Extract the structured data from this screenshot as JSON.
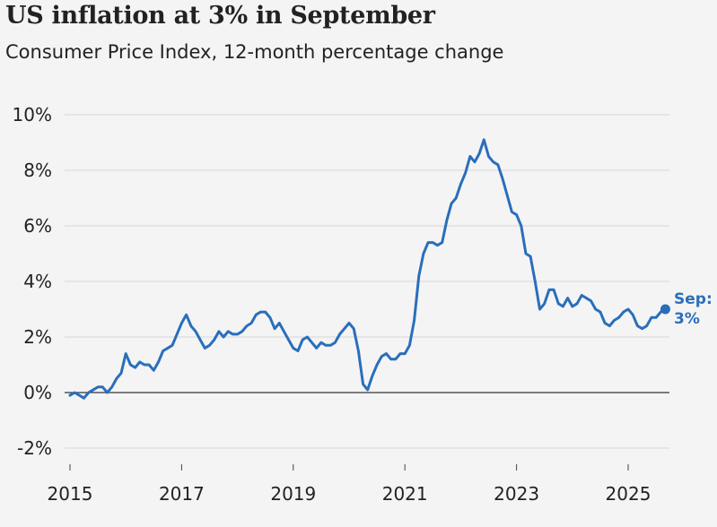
{
  "chart_data": {
    "type": "line",
    "title": "US inflation at 3% in September",
    "subtitle": "Consumer Price Index, 12-month percentage change",
    "xlabel": "",
    "ylabel": "",
    "ylim": [
      -2,
      10
    ],
    "y_ticks": [
      {
        "value": 10,
        "label": "10%"
      },
      {
        "value": 8,
        "label": "8%"
      },
      {
        "value": 6,
        "label": "6%"
      },
      {
        "value": 4,
        "label": "4%"
      },
      {
        "value": 2,
        "label": "2%"
      },
      {
        "value": 0,
        "label": "0%"
      },
      {
        "value": -2,
        "label": "-2%"
      }
    ],
    "x_ticks": [
      {
        "value": 2015,
        "label": "2015"
      },
      {
        "value": 2017,
        "label": "2017"
      },
      {
        "value": 2019,
        "label": "2019"
      },
      {
        "value": 2021,
        "label": "2021"
      },
      {
        "value": 2023,
        "label": "2023"
      },
      {
        "value": 2025,
        "label": "2025"
      }
    ],
    "grid": true,
    "line_color": "#2a6ebb",
    "series": [
      {
        "name": "CPI 12-month % change",
        "start": "2015-01",
        "frequency": "monthly",
        "values": [
          -0.1,
          0.0,
          -0.1,
          -0.2,
          0.0,
          0.1,
          0.2,
          0.2,
          0.0,
          0.2,
          0.5,
          0.7,
          1.4,
          1.0,
          0.9,
          1.1,
          1.0,
          1.0,
          0.8,
          1.1,
          1.5,
          1.6,
          1.7,
          2.1,
          2.5,
          2.8,
          2.4,
          2.2,
          1.9,
          1.6,
          1.7,
          1.9,
          2.2,
          2.0,
          2.2,
          2.1,
          2.1,
          2.2,
          2.4,
          2.5,
          2.8,
          2.9,
          2.9,
          2.7,
          2.3,
          2.5,
          2.2,
          1.9,
          1.6,
          1.5,
          1.9,
          2.0,
          1.8,
          1.6,
          1.8,
          1.7,
          1.7,
          1.8,
          2.1,
          2.3,
          2.5,
          2.3,
          1.5,
          0.3,
          0.1,
          0.6,
          1.0,
          1.3,
          1.4,
          1.2,
          1.2,
          1.4,
          1.4,
          1.7,
          2.6,
          4.2,
          5.0,
          5.4,
          5.4,
          5.3,
          5.4,
          6.2,
          6.8,
          7.0,
          7.5,
          7.9,
          8.5,
          8.3,
          8.6,
          9.1,
          8.5,
          8.3,
          8.2,
          7.7,
          7.1,
          6.5,
          6.4,
          6.0,
          5.0,
          4.9,
          4.0,
          3.0,
          3.2,
          3.7,
          3.7,
          3.2,
          3.1,
          3.4,
          3.1,
          3.2,
          3.5,
          3.4,
          3.3,
          3.0,
          2.9,
          2.5,
          2.4,
          2.6,
          2.7,
          2.9,
          3.0,
          2.8,
          2.4,
          2.3,
          2.4,
          2.7,
          2.7,
          2.9,
          3.0
        ]
      }
    ],
    "annotations": [
      {
        "text_line1": "Sep:",
        "text_line2": "3%",
        "x": "2025-09",
        "y": 3.0
      }
    ]
  }
}
